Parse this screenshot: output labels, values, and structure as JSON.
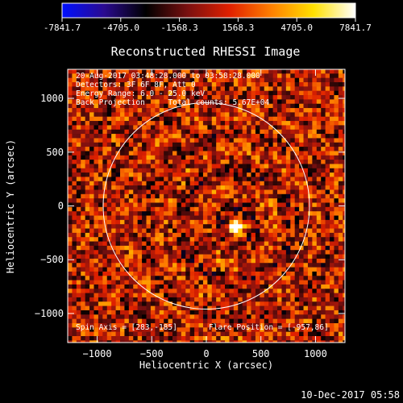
{
  "colorbar": {
    "min": -7841.7,
    "max": 7841.7,
    "tick_labels": [
      "-7841.7",
      "-4705.0",
      "-1568.3",
      "1568.3",
      "4705.0",
      "7841.7"
    ],
    "stops": [
      "#0010ff",
      "#2a0a90",
      "#000000",
      "#7a1010",
      "#e02000",
      "#ff8000",
      "#ffe000",
      "#ffffff"
    ]
  },
  "chart_data": {
    "type": "heatmap",
    "title": "Reconstructed RHESSI Image",
    "xlabel": "Heliocentric X (arcsec)",
    "ylabel": "Heliocentric Y (arcsec)",
    "xlim": [
      -1270,
      1270
    ],
    "ylim": [
      -1270,
      1270
    ],
    "x_ticks": [
      -1000,
      -500,
      0,
      500,
      1000
    ],
    "y_ticks": [
      -1000,
      -500,
      0,
      500,
      1000
    ],
    "x_tick_labels": [
      "−1000",
      "−500",
      "0",
      "500",
      "1000"
    ],
    "y_tick_labels": [
      "−1000",
      "−500",
      "0",
      "500",
      "1000"
    ],
    "solar_limb_radius": 945,
    "source_marker": [
      283,
      -185
    ],
    "source_peak": [
      283,
      -195
    ],
    "info_lines": [
      "20-Aug-2017 03:48:28.000 to 03:58:28.000",
      "Detectors: 3F 6F 8F, Att 0",
      "Energy Range: 6.0 - 25.0 keV",
      "Back Projection     Total counts: 5.67E+04"
    ],
    "spin_axis": "Spin Axis = [283,-185]",
    "flare_position": "Flare Position = [-957,86]"
  },
  "footer": {
    "date": "10-Dec-2017 05:58"
  }
}
